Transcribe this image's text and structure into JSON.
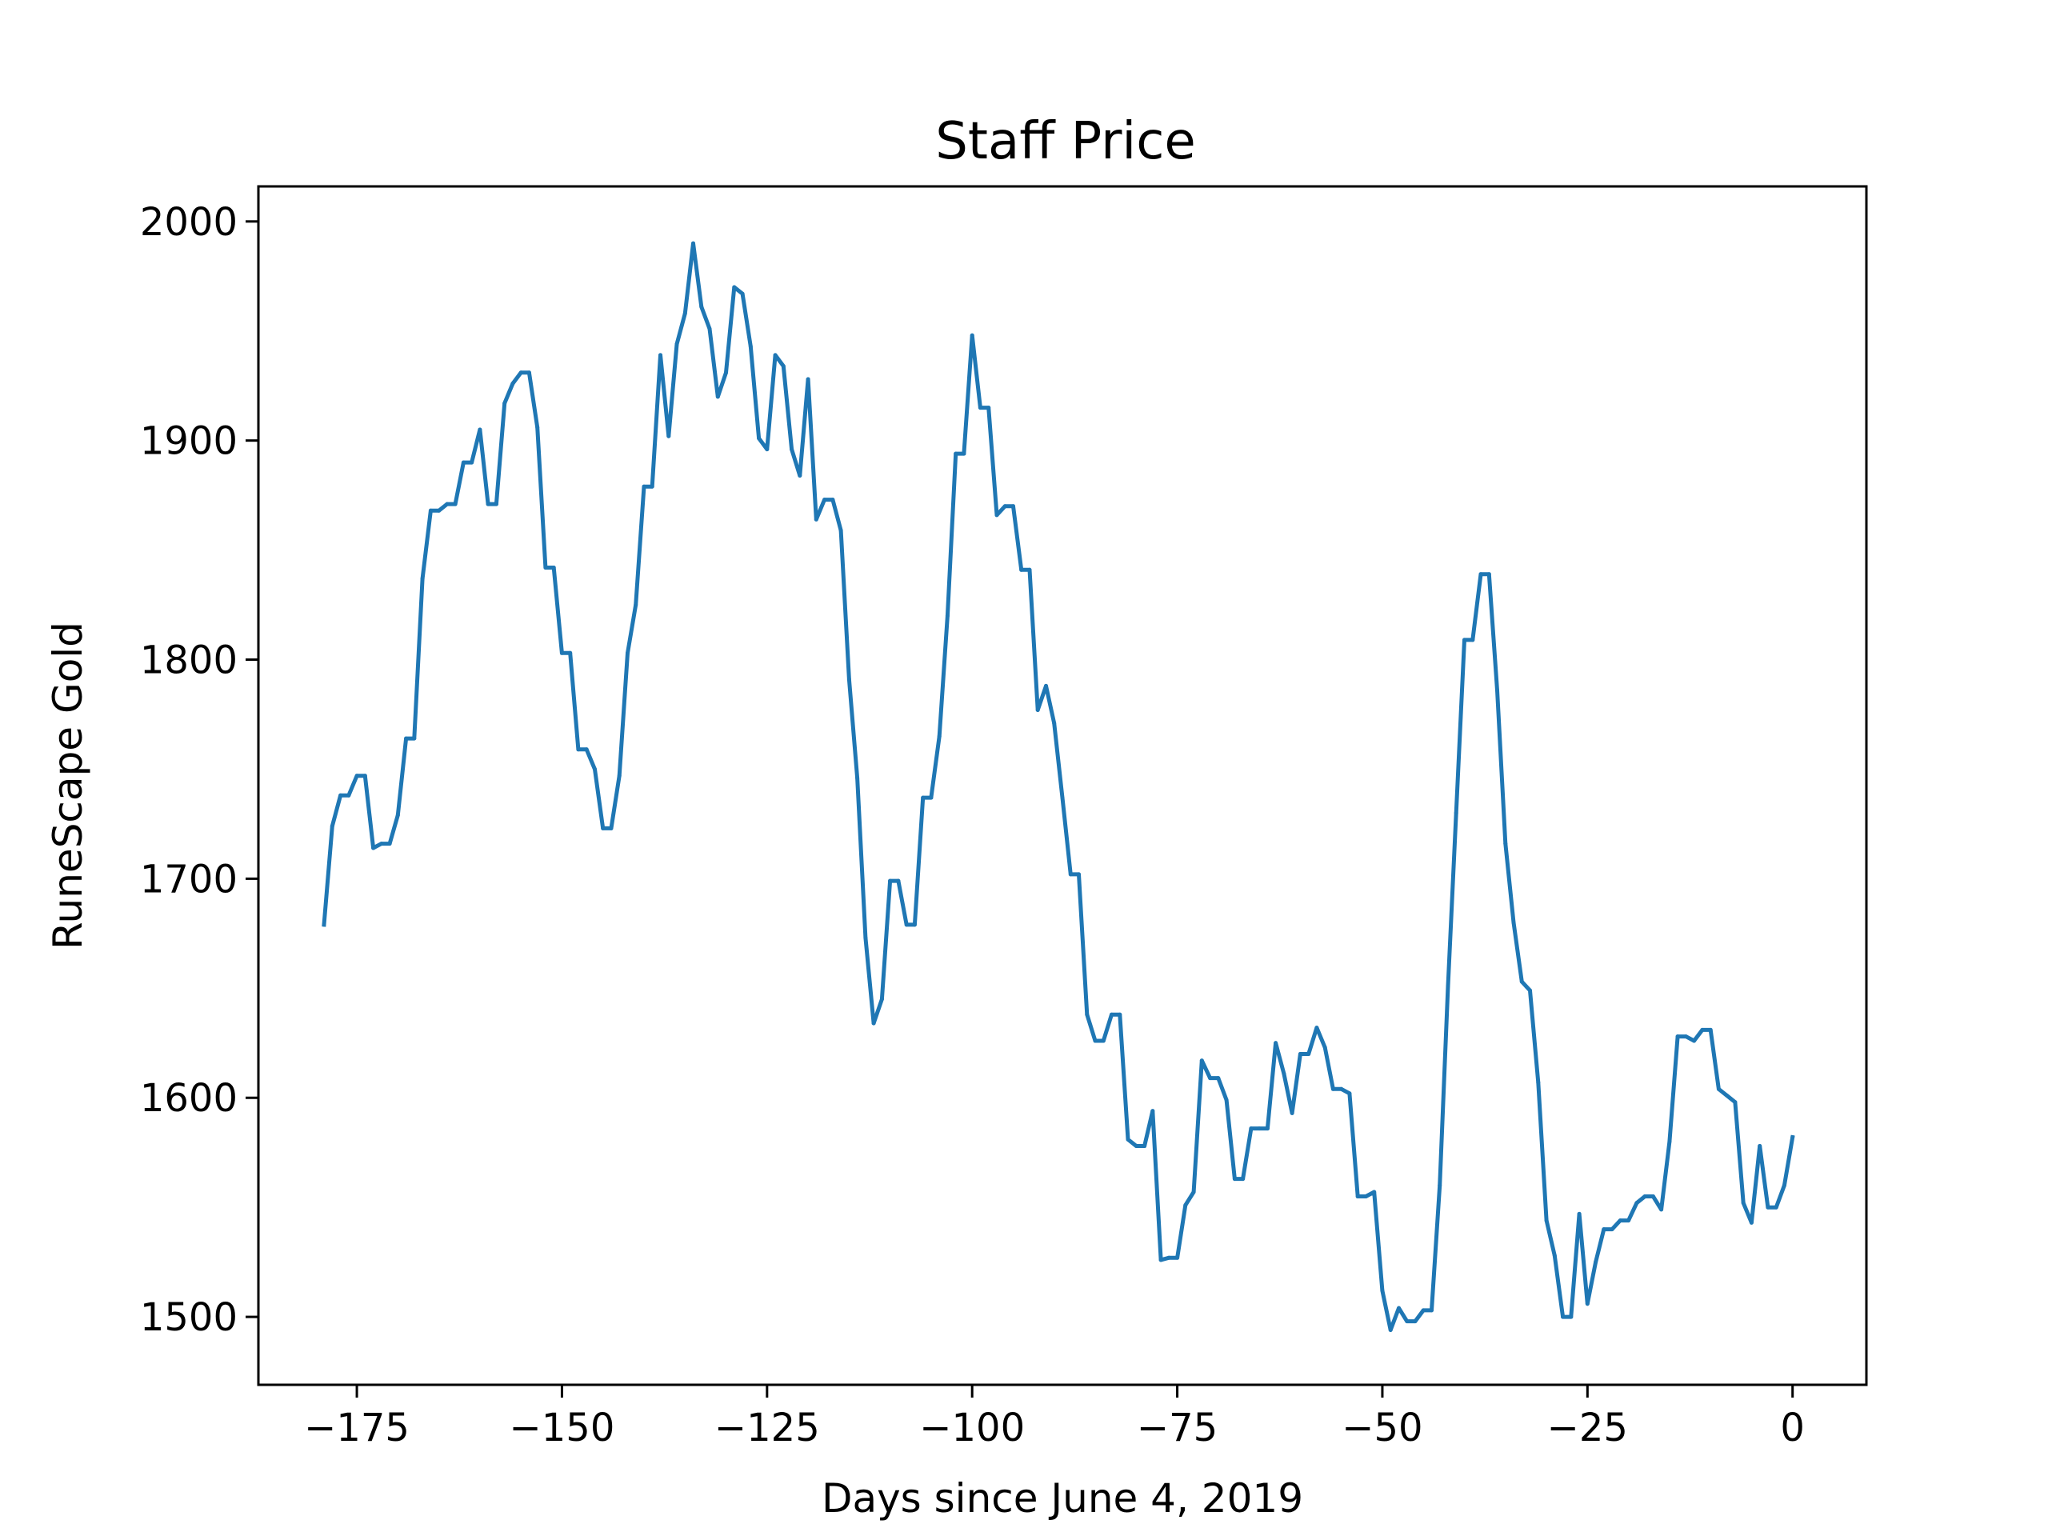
{
  "chart_data": {
    "type": "line",
    "title": "Staff Price",
    "xlabel": "Days since June 4, 2019",
    "ylabel": "RuneScape Gold",
    "xlim": [
      -187,
      9
    ],
    "ylim": [
      1469,
      2016
    ],
    "x_ticks": [
      -175,
      -150,
      -125,
      -100,
      -75,
      -50,
      -25,
      0
    ],
    "x_tick_labels": [
      "−175",
      "−150",
      "−125",
      "−100",
      "−75",
      "−50",
      "−25",
      "0"
    ],
    "y_ticks": [
      1500,
      1600,
      1700,
      1800,
      1900,
      2000
    ],
    "y_tick_labels": [
      "1500",
      "1600",
      "1700",
      "1800",
      "1900",
      "2000"
    ],
    "grid": false,
    "legend": "none",
    "series": [
      {
        "color": "#1f77b4",
        "points": [
          [
            -179,
            1679
          ],
          [
            -178,
            1724
          ],
          [
            -177,
            1738
          ],
          [
            -176,
            1738
          ],
          [
            -175,
            1747
          ],
          [
            -174,
            1747
          ],
          [
            -173,
            1714
          ],
          [
            -172,
            1716
          ],
          [
            -171,
            1716
          ],
          [
            -170,
            1729
          ],
          [
            -169,
            1764
          ],
          [
            -168,
            1764
          ],
          [
            -167,
            1837
          ],
          [
            -166,
            1868
          ],
          [
            -165,
            1868
          ],
          [
            -164,
            1871
          ],
          [
            -163,
            1871
          ],
          [
            -162,
            1890
          ],
          [
            -161,
            1890
          ],
          [
            -160,
            1905
          ],
          [
            -159,
            1871
          ],
          [
            -158,
            1871
          ],
          [
            -157,
            1917
          ],
          [
            -156,
            1926
          ],
          [
            -155,
            1931
          ],
          [
            -154,
            1931
          ],
          [
            -153,
            1906
          ],
          [
            -152,
            1842
          ],
          [
            -151,
            1842
          ],
          [
            -150,
            1803
          ],
          [
            -149,
            1803
          ],
          [
            -148,
            1759
          ],
          [
            -147,
            1759
          ],
          [
            -146,
            1750
          ],
          [
            -145,
            1723
          ],
          [
            -144,
            1723
          ],
          [
            -143,
            1747
          ],
          [
            -142,
            1803
          ],
          [
            -141,
            1825
          ],
          [
            -140,
            1879
          ],
          [
            -139,
            1879
          ],
          [
            -138,
            1939
          ],
          [
            -137,
            1902
          ],
          [
            -136,
            1944
          ],
          [
            -135,
            1958
          ],
          [
            -134,
            1990
          ],
          [
            -133,
            1961
          ],
          [
            -132,
            1951
          ],
          [
            -131,
            1920
          ],
          [
            -130,
            1931
          ],
          [
            -129,
            1970
          ],
          [
            -128,
            1967
          ],
          [
            -127,
            1943
          ],
          [
            -126,
            1901
          ],
          [
            -125,
            1896
          ],
          [
            -124,
            1939
          ],
          [
            -123,
            1934
          ],
          [
            -122,
            1896
          ],
          [
            -121,
            1884
          ],
          [
            -120,
            1928
          ],
          [
            -119,
            1864
          ],
          [
            -118,
            1873
          ],
          [
            -117,
            1873
          ],
          [
            -116,
            1859
          ],
          [
            -115,
            1791
          ],
          [
            -114,
            1746
          ],
          [
            -113,
            1673
          ],
          [
            -112,
            1634
          ],
          [
            -111,
            1645
          ],
          [
            -110,
            1699
          ],
          [
            -109,
            1699
          ],
          [
            -108,
            1679
          ],
          [
            -107,
            1679
          ],
          [
            -106,
            1737
          ],
          [
            -105,
            1737
          ],
          [
            -104,
            1765
          ],
          [
            -103,
            1820
          ],
          [
            -102,
            1894
          ],
          [
            -101,
            1894
          ],
          [
            -100,
            1948
          ],
          [
            -99,
            1915
          ],
          [
            -98,
            1915
          ],
          [
            -97,
            1866
          ],
          [
            -96,
            1870
          ],
          [
            -95,
            1870
          ],
          [
            -94,
            1841
          ],
          [
            -93,
            1841
          ],
          [
            -92,
            1777
          ],
          [
            -91,
            1788
          ],
          [
            -90,
            1771
          ],
          [
            -89,
            1737
          ],
          [
            -88,
            1702
          ],
          [
            -87,
            1702
          ],
          [
            -86,
            1638
          ],
          [
            -85,
            1626
          ],
          [
            -84,
            1626
          ],
          [
            -83,
            1638
          ],
          [
            -82,
            1638
          ],
          [
            -81,
            1581
          ],
          [
            -80,
            1578
          ],
          [
            -79,
            1578
          ],
          [
            -78,
            1594
          ],
          [
            -77,
            1526
          ],
          [
            -76,
            1527
          ],
          [
            -75,
            1527
          ],
          [
            -74,
            1551
          ],
          [
            -73,
            1557
          ],
          [
            -72,
            1617
          ],
          [
            -71,
            1609
          ],
          [
            -70,
            1609
          ],
          [
            -69,
            1599
          ],
          [
            -68,
            1563
          ],
          [
            -67,
            1563
          ],
          [
            -66,
            1586
          ],
          [
            -65,
            1586
          ],
          [
            -64,
            1586
          ],
          [
            -63,
            1625
          ],
          [
            -62,
            1611
          ],
          [
            -61,
            1593
          ],
          [
            -60,
            1620
          ],
          [
            -59,
            1620
          ],
          [
            -58,
            1632
          ],
          [
            -57,
            1623
          ],
          [
            -56,
            1604
          ],
          [
            -55,
            1604
          ],
          [
            -54,
            1602
          ],
          [
            -53,
            1555
          ],
          [
            -52,
            1555
          ],
          [
            -51,
            1557
          ],
          [
            -50,
            1512
          ],
          [
            -49,
            1494
          ],
          [
            -48,
            1504
          ],
          [
            -47,
            1498
          ],
          [
            -46,
            1498
          ],
          [
            -45,
            1503
          ],
          [
            -44,
            1503
          ],
          [
            -43,
            1560
          ],
          [
            -42,
            1651
          ],
          [
            -41,
            1730
          ],
          [
            -40,
            1809
          ],
          [
            -39,
            1809
          ],
          [
            -38,
            1839
          ],
          [
            -37,
            1839
          ],
          [
            -36,
            1786
          ],
          [
            -35,
            1716
          ],
          [
            -34,
            1680
          ],
          [
            -33,
            1653
          ],
          [
            -32,
            1649
          ],
          [
            -31,
            1607
          ],
          [
            -30,
            1544
          ],
          [
            -29,
            1528
          ],
          [
            -28,
            1500
          ],
          [
            -27,
            1500
          ],
          [
            -26,
            1547
          ],
          [
            -25,
            1506
          ],
          [
            -24,
            1525
          ],
          [
            -23,
            1540
          ],
          [
            -22,
            1540
          ],
          [
            -21,
            1544
          ],
          [
            -20,
            1544
          ],
          [
            -19,
            1552
          ],
          [
            -18,
            1555
          ],
          [
            -17,
            1555
          ],
          [
            -16,
            1549
          ],
          [
            -15,
            1580
          ],
          [
            -14,
            1628
          ],
          [
            -13,
            1628
          ],
          [
            -12,
            1626
          ],
          [
            -11,
            1631
          ],
          [
            -10,
            1631
          ],
          [
            -9,
            1604
          ],
          [
            -8,
            1601
          ],
          [
            -7,
            1598
          ],
          [
            -6,
            1552
          ],
          [
            -5,
            1543
          ],
          [
            -4,
            1578
          ],
          [
            -3,
            1550
          ],
          [
            -2,
            1550
          ],
          [
            -1,
            1560
          ],
          [
            0,
            1582
          ]
        ]
      }
    ]
  }
}
